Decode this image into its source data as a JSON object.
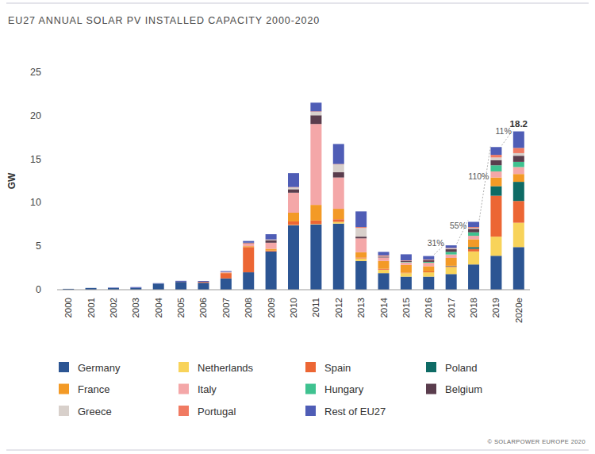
{
  "chart_data": {
    "type": "bar",
    "title": "EU27 ANNUAL SOLAR PV INSTALLED CAPACITY 2000-2020",
    "y_label": "GW",
    "source": "© SOLARPOWER EUROPE 2020",
    "stacked": true,
    "grid": false,
    "legend": "bottom",
    "categories": [
      "2000",
      "2001",
      "2002",
      "2003",
      "2004",
      "2005",
      "2006",
      "2007",
      "2008",
      "2009",
      "2010",
      "2011",
      "2012",
      "2013",
      "2014",
      "2015",
      "2016",
      "2017",
      "2018",
      "2019",
      "2020e"
    ],
    "ylim": [
      0,
      25
    ],
    "yticks": [
      0,
      5,
      10,
      15,
      20,
      25
    ],
    "series": [
      {
        "name": "Germany",
        "color": "#2c5593",
        "values": [
          0.1,
          0.2,
          0.2,
          0.2,
          0.7,
          0.9,
          0.8,
          1.3,
          2.0,
          4.4,
          7.4,
          7.5,
          7.6,
          3.3,
          1.9,
          1.5,
          1.5,
          1.8,
          2.9,
          3.9,
          4.9
        ]
      },
      {
        "name": "Netherlands",
        "color": "#f8d35a",
        "values": [
          0,
          0,
          0,
          0,
          0,
          0,
          0,
          0,
          0,
          0,
          0.05,
          0.05,
          0.2,
          0.3,
          0.4,
          0.4,
          0.5,
          0.8,
          1.5,
          2.2,
          2.8
        ]
      },
      {
        "name": "Spain",
        "color": "#ec6634",
        "values": [
          0,
          0,
          0,
          0,
          0,
          0.02,
          0.1,
          0.6,
          2.9,
          0.1,
          0.4,
          0.4,
          0.3,
          0.1,
          0.1,
          0.05,
          0.1,
          0.1,
          0.3,
          4.7,
          2.5
        ]
      },
      {
        "name": "Poland",
        "color": "#0e6b65",
        "values": [
          0,
          0,
          0,
          0,
          0,
          0,
          0,
          0,
          0,
          0,
          0,
          0,
          0,
          0,
          0,
          0,
          0,
          0.05,
          0.2,
          1.1,
          2.2
        ]
      },
      {
        "name": "France",
        "color": "#f39a26",
        "values": [
          0,
          0,
          0,
          0,
          0,
          0,
          0,
          0.05,
          0.1,
          0.2,
          1.0,
          1.8,
          1.2,
          0.6,
          0.9,
          0.9,
          0.6,
          0.9,
          0.9,
          1.0,
          0.9
        ]
      },
      {
        "name": "Italy",
        "color": "#f4a7a8",
        "values": [
          0,
          0,
          0,
          0,
          0,
          0,
          0,
          0.07,
          0.3,
          0.7,
          2.3,
          9.3,
          3.6,
          1.6,
          0.4,
          0.3,
          0.4,
          0.4,
          0.4,
          0.7,
          0.8
        ]
      },
      {
        "name": "Hungary",
        "color": "#3fc290",
        "values": [
          0,
          0,
          0,
          0,
          0,
          0,
          0,
          0,
          0,
          0,
          0,
          0,
          0,
          0,
          0,
          0.05,
          0.1,
          0.3,
          0.4,
          0.7,
          0.6
        ]
      },
      {
        "name": "Belgium",
        "color": "#5a3d4d",
        "values": [
          0,
          0,
          0,
          0,
          0,
          0,
          0,
          0,
          0.05,
          0.3,
          0.4,
          1.0,
          0.6,
          0.2,
          0.1,
          0.1,
          0.2,
          0.3,
          0.4,
          0.6,
          0.7
        ]
      },
      {
        "name": "Greece",
        "color": "#d8d0cb",
        "values": [
          0,
          0,
          0,
          0,
          0,
          0,
          0,
          0,
          0,
          0.05,
          0.2,
          0.4,
          0.9,
          1.0,
          0.05,
          0.02,
          0.02,
          0.1,
          0.1,
          0.3,
          0.3
        ]
      },
      {
        "name": "Portugal",
        "color": "#f07a62",
        "values": [
          0,
          0,
          0,
          0,
          0,
          0,
          0,
          0.02,
          0.05,
          0.03,
          0.05,
          0.05,
          0.05,
          0.1,
          0.1,
          0.05,
          0.05,
          0.05,
          0.1,
          0.3,
          0.6
        ]
      },
      {
        "name": "Rest of EU27",
        "color": "#4f5db6",
        "values": [
          0,
          0,
          0.05,
          0.1,
          0.05,
          0.1,
          0.1,
          0.1,
          0.2,
          0.6,
          1.6,
          1.0,
          2.3,
          1.8,
          0.4,
          0.7,
          0.4,
          0.3,
          0.6,
          0.9,
          1.9
        ]
      }
    ],
    "annotations": [
      {
        "text": "31%",
        "from": "2016",
        "to": "2017"
      },
      {
        "text": "55%",
        "from": "2017",
        "to": "2018"
      },
      {
        "text": "110%",
        "from": "2018",
        "to": "2019"
      },
      {
        "text": "11%",
        "from": "2019",
        "to": "2020e"
      },
      {
        "text": "18.2",
        "value": 18.2,
        "category": "2020e"
      }
    ]
  }
}
